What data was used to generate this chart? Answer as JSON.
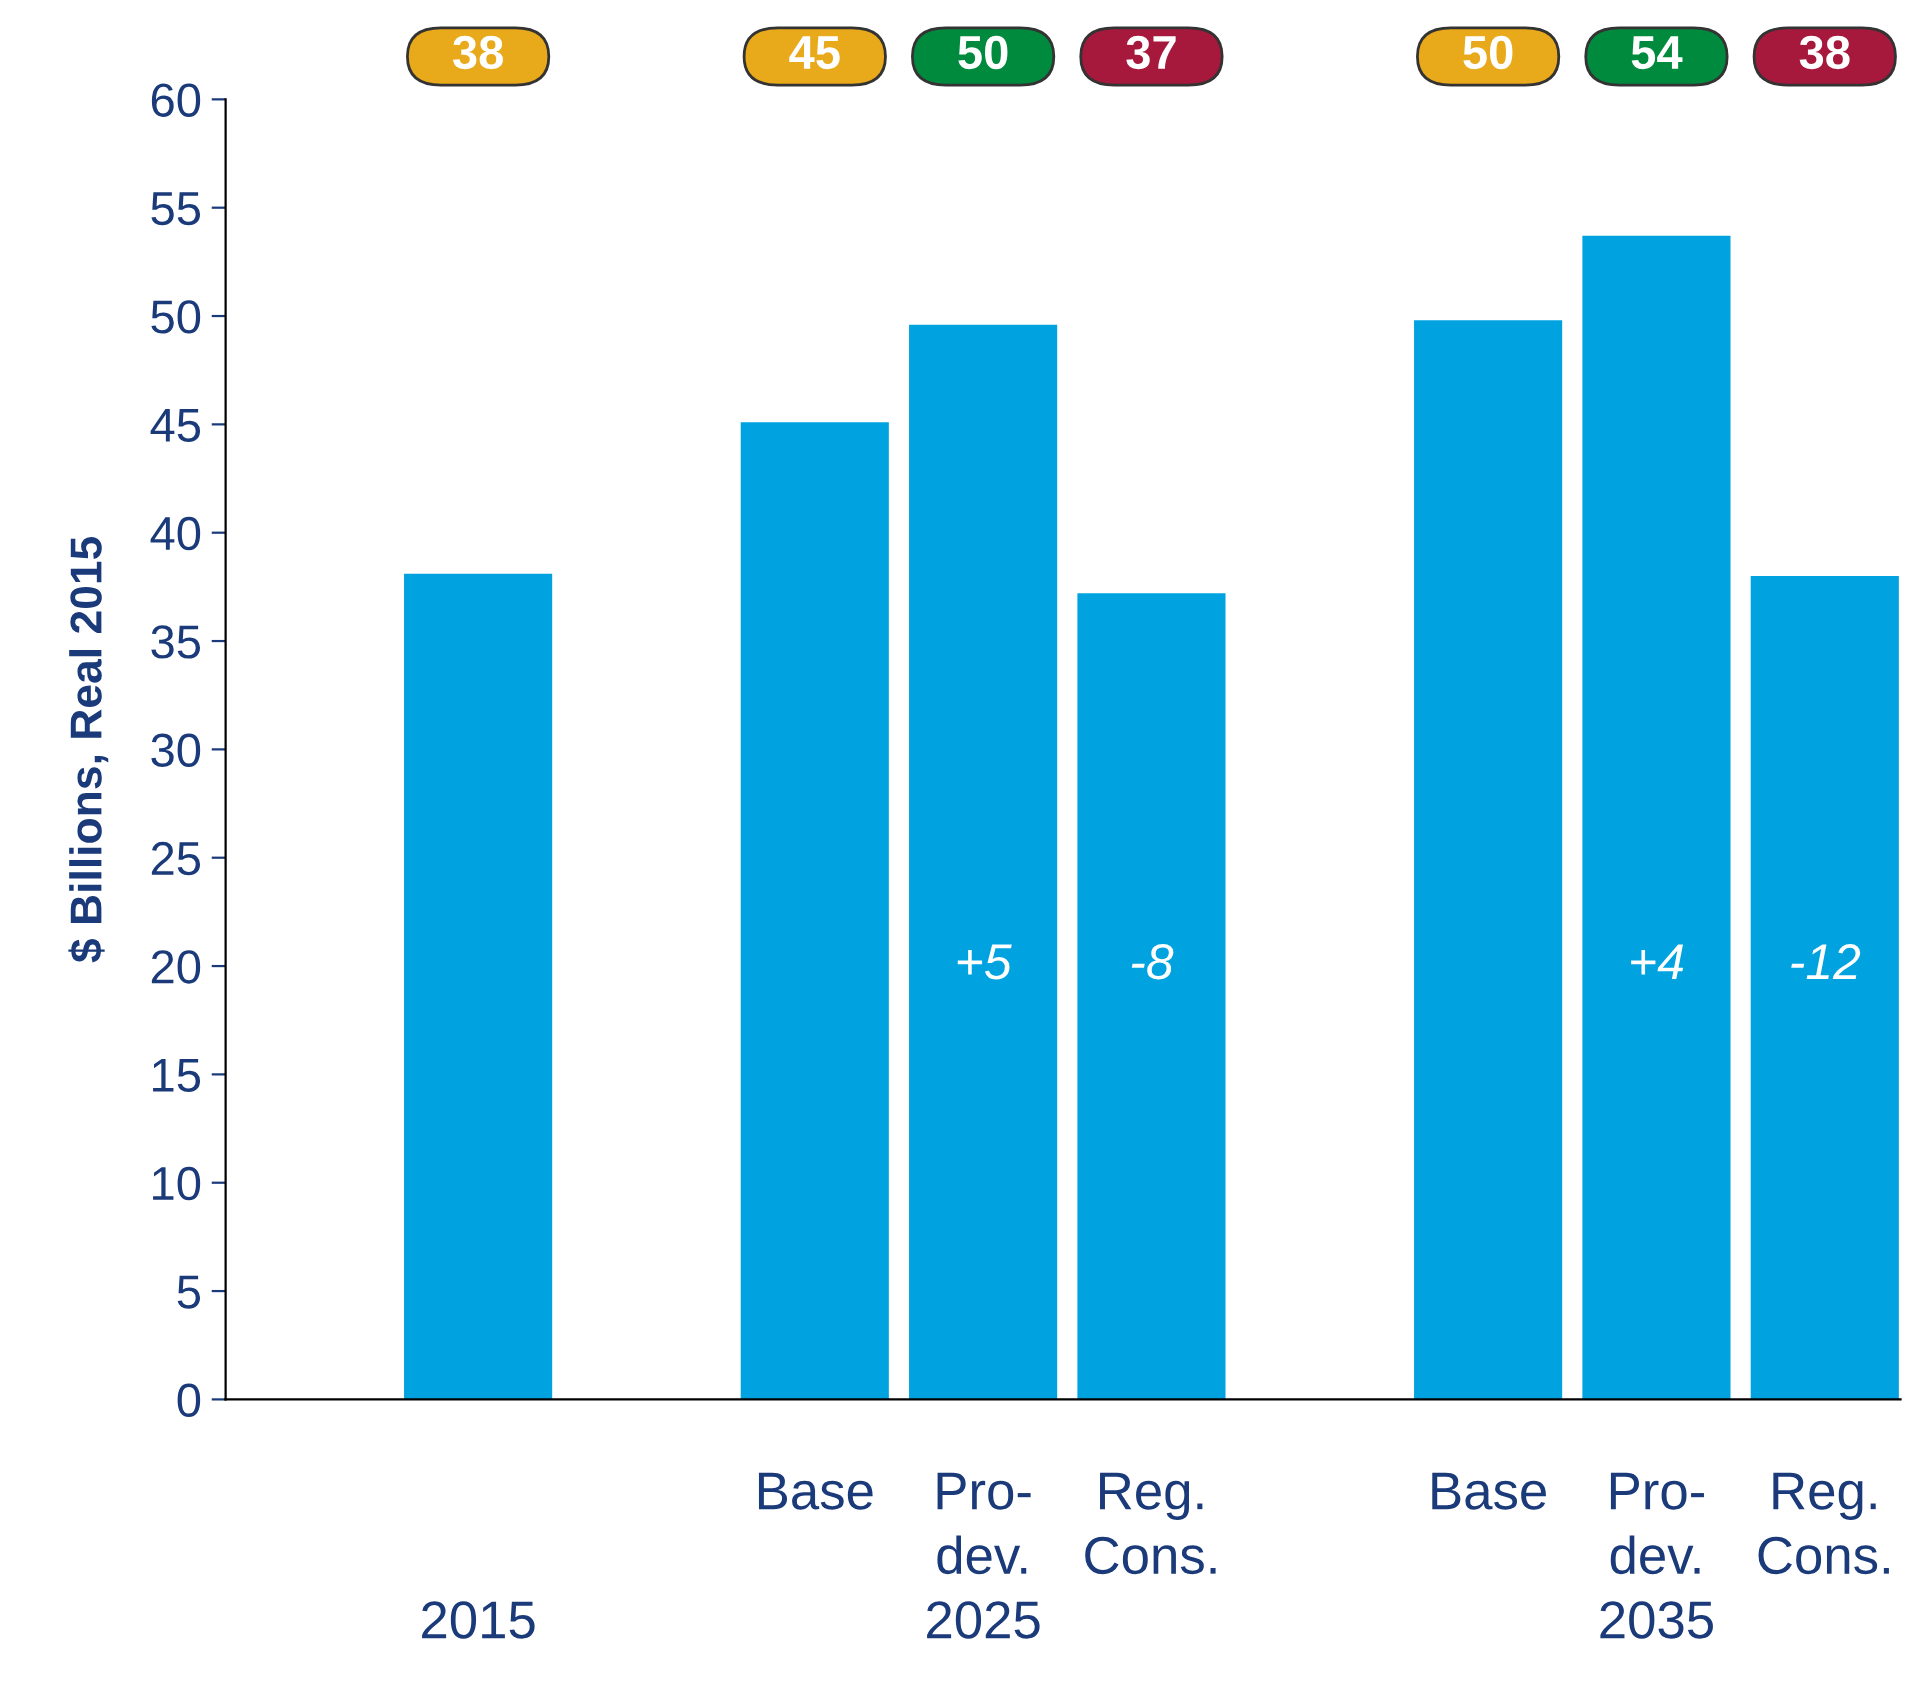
{
  "chart_data": {
    "type": "bar",
    "ylabel": "$ Billions, Real 2015",
    "categories": [
      null,
      null,
      "Base",
      "Pro-\ndev.\n2025",
      "Reg.\nCons.",
      null,
      "Base",
      "Pro-\ndev.\n2035",
      "Reg.\nCons."
    ],
    "values": [
      38.1,
      null,
      45.1,
      49.6,
      37.2,
      null,
      49.8,
      53.7,
      38.0
    ],
    "color": "#00a3e0",
    "ylim": [
      0,
      60
    ],
    "yticks": [
      0,
      5,
      10,
      15,
      20,
      25,
      30,
      35,
      40,
      45,
      50,
      55,
      60
    ],
    "grid": false,
    "annotations": [
      "2015",
      "38",
      "45",
      "50",
      "37",
      "50",
      "54",
      "38",
      "+5",
      "-8",
      "+4",
      "-12"
    ]
  }
}
